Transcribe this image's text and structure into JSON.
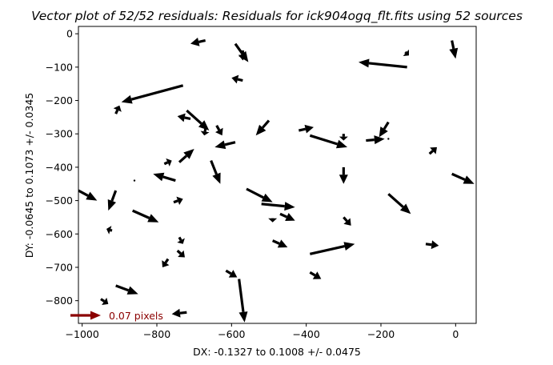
{
  "chart_data": {
    "type": "quiver",
    "title": "Vector plot of 52/52 residuals: Residuals for ick904ogq_flt.fits using 52 sources",
    "xlabel": "DX: -0.1327 to 0.1008 +/- 0.0475",
    "ylabel": "DY: -0.0645 to 0.1073 +/- 0.0345",
    "xlim": [
      -1010,
      55
    ],
    "ylim": [
      -868,
      22
    ],
    "xticks": [
      -1000,
      -800,
      -600,
      -400,
      -200,
      0
    ],
    "yticks": [
      0,
      -100,
      -200,
      -300,
      -400,
      -500,
      -600,
      -700,
      -800
    ],
    "grid": false,
    "key": {
      "label": "0.07 pixels",
      "color": "#8b0000"
    },
    "arrow_color": "#000000",
    "vectors": [
      {
        "x": -670,
        "y": -20,
        "dx": -40,
        "dy": -10
      },
      {
        "x": -590,
        "y": -30,
        "dx": 35,
        "dy": -55
      },
      {
        "x": -570,
        "y": -50,
        "dx": 0,
        "dy": -30
      },
      {
        "x": -570,
        "y": -140,
        "dx": -30,
        "dy": 8
      },
      {
        "x": -130,
        "y": -100,
        "dx": -130,
        "dy": 15
      },
      {
        "x": -135,
        "y": -55,
        "dx": 10,
        "dy": -10
      },
      {
        "x": -10,
        "y": -20,
        "dx": 10,
        "dy": -55
      },
      {
        "x": -730,
        "y": -155,
        "dx": -165,
        "dy": -50
      },
      {
        "x": -910,
        "y": -240,
        "dx": 10,
        "dy": 25
      },
      {
        "x": -710,
        "y": -255,
        "dx": -35,
        "dy": 8
      },
      {
        "x": -720,
        "y": -230,
        "dx": 60,
        "dy": -60
      },
      {
        "x": -670,
        "y": -285,
        "dx": -3,
        "dy": -20
      },
      {
        "x": -640,
        "y": -275,
        "dx": 15,
        "dy": -30
      },
      {
        "x": -590,
        "y": -325,
        "dx": -55,
        "dy": -15
      },
      {
        "x": -500,
        "y": -260,
        "dx": -35,
        "dy": -45
      },
      {
        "x": -420,
        "y": -290,
        "dx": 40,
        "dy": 10
      },
      {
        "x": -390,
        "y": -305,
        "dx": 100,
        "dy": -35
      },
      {
        "x": -300,
        "y": -300,
        "dx": 0,
        "dy": -20
      },
      {
        "x": -240,
        "y": -320,
        "dx": 50,
        "dy": 5
      },
      {
        "x": -180,
        "y": -265,
        "dx": -25,
        "dy": -45
      },
      {
        "x": -70,
        "y": -360,
        "dx": 20,
        "dy": 20
      },
      {
        "x": -740,
        "y": -385,
        "dx": 40,
        "dy": 40
      },
      {
        "x": -780,
        "y": -390,
        "dx": 20,
        "dy": 10
      },
      {
        "x": -655,
        "y": -380,
        "dx": 25,
        "dy": -70
      },
      {
        "x": -750,
        "y": -440,
        "dx": -60,
        "dy": 20
      },
      {
        "x": -300,
        "y": -400,
        "dx": 0,
        "dy": -50
      },
      {
        "x": -1010,
        "y": -470,
        "dx": 50,
        "dy": -30
      },
      {
        "x": -910,
        "y": -470,
        "dx": -20,
        "dy": -60
      },
      {
        "x": -865,
        "y": -530,
        "dx": 70,
        "dy": -35
      },
      {
        "x": -755,
        "y": -505,
        "dx": 25,
        "dy": 10
      },
      {
        "x": -560,
        "y": -465,
        "dx": 70,
        "dy": -40
      },
      {
        "x": -520,
        "y": -510,
        "dx": 90,
        "dy": -10
      },
      {
        "x": -470,
        "y": -540,
        "dx": 40,
        "dy": -20
      },
      {
        "x": -490,
        "y": -560,
        "dx": 0,
        "dy": -5
      },
      {
        "x": -300,
        "y": -550,
        "dx": 20,
        "dy": -25
      },
      {
        "x": -180,
        "y": -480,
        "dx": 60,
        "dy": -60
      },
      {
        "x": -10,
        "y": -420,
        "dx": 60,
        "dy": -30
      },
      {
        "x": -920,
        "y": -590,
        "dx": -15,
        "dy": 5
      },
      {
        "x": -740,
        "y": -610,
        "dx": 10,
        "dy": -20
      },
      {
        "x": -745,
        "y": -650,
        "dx": 20,
        "dy": -20
      },
      {
        "x": -770,
        "y": -675,
        "dx": -15,
        "dy": -25
      },
      {
        "x": -580,
        "y": -735,
        "dx": 15,
        "dy": -130
      },
      {
        "x": -615,
        "y": -710,
        "dx": 30,
        "dy": -20
      },
      {
        "x": -490,
        "y": -620,
        "dx": 40,
        "dy": -20
      },
      {
        "x": -390,
        "y": -660,
        "dx": 120,
        "dy": 30
      },
      {
        "x": -80,
        "y": -630,
        "dx": 35,
        "dy": -5
      },
      {
        "x": -390,
        "y": -715,
        "dx": 30,
        "dy": -20
      },
      {
        "x": -910,
        "y": -755,
        "dx": 60,
        "dy": -25
      },
      {
        "x": -950,
        "y": -795,
        "dx": 20,
        "dy": -15
      },
      {
        "x": -720,
        "y": -835,
        "dx": -40,
        "dy": -5
      },
      {
        "x": -860,
        "y": -440,
        "dx": 0,
        "dy": 0
      },
      {
        "x": -180,
        "y": -315,
        "dx": 0,
        "dy": 0
      }
    ]
  }
}
